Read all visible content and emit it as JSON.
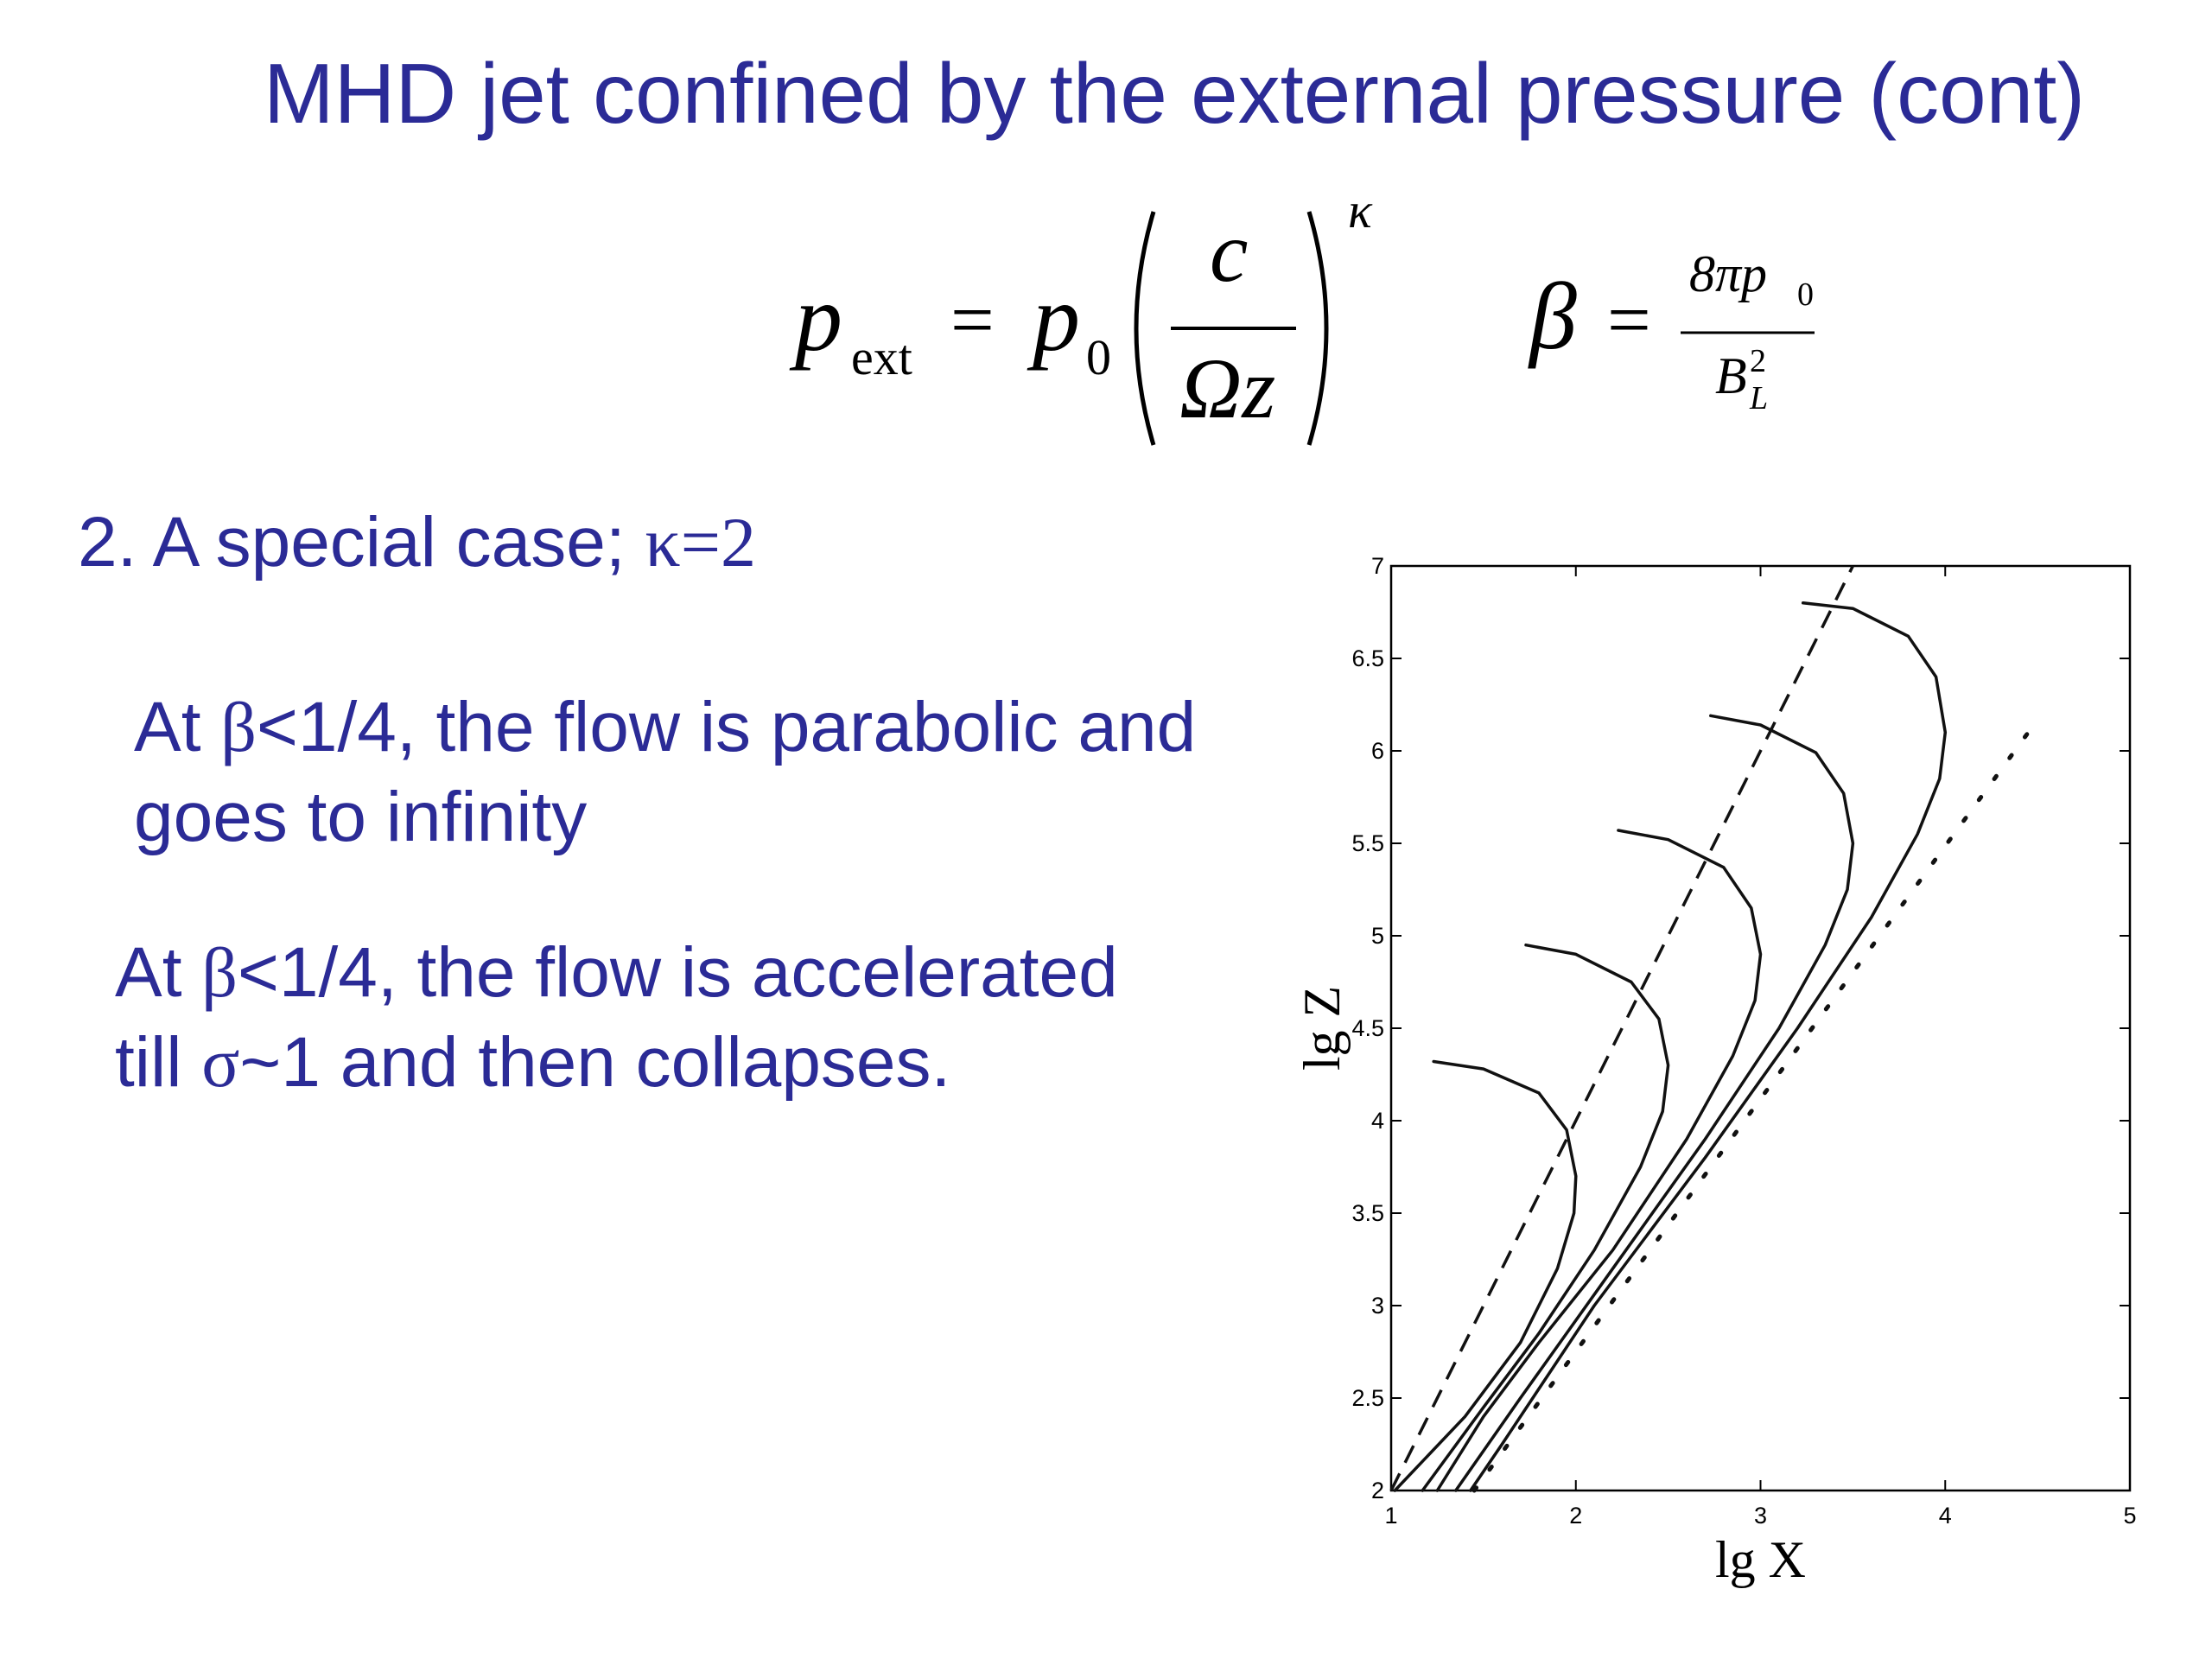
{
  "slide": {
    "title": "MHD jet confined by the external pressure (cont)",
    "case_label": "2. A special case; ",
    "case_kappa": "κ=2",
    "paragraph1": {
      "line1_prefix": "At ",
      "line1_beta": "β",
      "line1_rest": "<1/4, the flow is parabolic and",
      "line2": "goes to infinity"
    },
    "paragraph2": {
      "line1_prefix": "At ",
      "line1_beta": "β",
      "line1_rest": "<1/4, the flow is accelerated",
      "line2_prefix": "till ",
      "line2_sigma": "σ",
      "line2_rest": "~1 and then collapses."
    }
  },
  "formula": {
    "p": "p",
    "ext": "ext",
    "eq": "=",
    "p0": "p",
    "zero": "0",
    "c": "c",
    "omega_z": "Ωz",
    "kappa": "κ",
    "beta": "β",
    "eq2": "=",
    "num": "8πp",
    "num_sub": "0",
    "den": "B",
    "den_sup": "2",
    "den_sub": "L"
  },
  "chart_data": {
    "type": "line",
    "xlabel": "lg X",
    "ylabel": "lg Z",
    "xlim": [
      1,
      5
    ],
    "ylim": [
      2,
      7
    ],
    "x_ticks": [
      "1",
      "2",
      "3",
      "4",
      "5"
    ],
    "y_ticks": [
      "2",
      "2.5",
      "3",
      "3.5",
      "4",
      "4.5",
      "5",
      "5.5",
      "6",
      "6.5",
      "7"
    ],
    "series": [
      {
        "style": "solid",
        "x": [
          1.23,
          1.5,
          1.8,
          1.95,
          2.0,
          1.99,
          1.9,
          1.7,
          1.4,
          1.02
        ],
        "y": [
          4.32,
          4.28,
          4.15,
          3.95,
          3.7,
          3.5,
          3.2,
          2.8,
          2.4,
          2.0
        ]
      },
      {
        "style": "solid",
        "x": [
          1.73,
          2.0,
          2.3,
          2.45,
          2.5,
          2.47,
          2.35,
          2.1,
          1.8,
          1.5,
          1.17
        ],
        "y": [
          4.95,
          4.9,
          4.75,
          4.55,
          4.3,
          4.05,
          3.75,
          3.3,
          2.85,
          2.45,
          2.0
        ]
      },
      {
        "style": "solid",
        "x": [
          2.23,
          2.5,
          2.8,
          2.95,
          3.0,
          2.97,
          2.85,
          2.6,
          2.2,
          1.8,
          1.5,
          1.25
        ],
        "y": [
          5.57,
          5.52,
          5.37,
          5.15,
          4.9,
          4.65,
          4.35,
          3.9,
          3.3,
          2.8,
          2.4,
          2.0
        ]
      },
      {
        "style": "solid",
        "x": [
          2.73,
          3.0,
          3.3,
          3.45,
          3.5,
          3.47,
          3.35,
          3.1,
          2.7,
          2.2,
          1.7,
          1.35
        ],
        "y": [
          6.19,
          6.14,
          5.99,
          5.77,
          5.5,
          5.25,
          4.95,
          4.5,
          3.9,
          3.2,
          2.5,
          2.0
        ]
      },
      {
        "style": "solid",
        "x": [
          3.23,
          3.5,
          3.8,
          3.95,
          4.0,
          3.97,
          3.85,
          3.6,
          3.2,
          2.7,
          2.1,
          1.6,
          1.43
        ],
        "y": [
          6.8,
          6.77,
          6.62,
          6.4,
          6.1,
          5.85,
          5.55,
          5.1,
          4.5,
          3.8,
          3.0,
          2.25,
          2.0
        ]
      },
      {
        "style": "dashed",
        "x": [
          1.0,
          3.5
        ],
        "y": [
          2.0,
          7.0
        ]
      },
      {
        "style": "dotted",
        "x": [
          1.45,
          4.45
        ],
        "y": [
          2.0,
          6.1
        ]
      }
    ]
  }
}
